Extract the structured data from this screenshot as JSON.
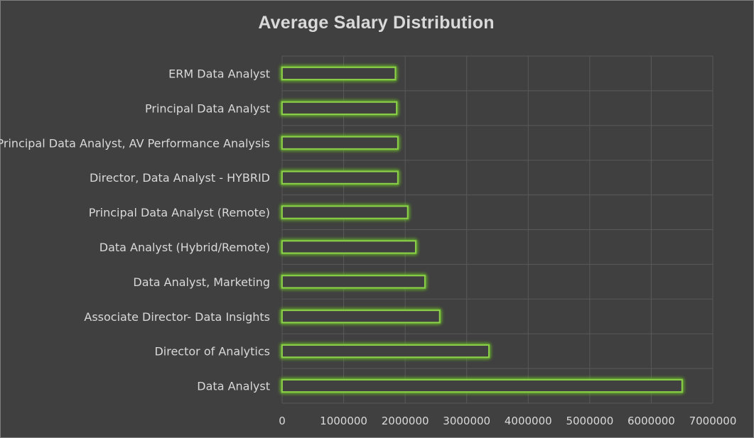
{
  "chart_data": {
    "type": "bar",
    "orientation": "horizontal",
    "title": "Average Salary Distribution",
    "xlabel": "",
    "ylabel": "",
    "xlim": [
      0,
      7000000
    ],
    "x_ticks": [
      "0",
      "1000000",
      "2000000",
      "3000000",
      "4000000",
      "5000000",
      "6000000",
      "7000000"
    ],
    "grid": true,
    "legend": "none",
    "categories": [
      "ERM Data Analyst",
      "Principal Data Analyst",
      "Principal Data Analyst, AV Performance Analysis",
      "Director, Data Analyst - HYBRID",
      "Principal Data Analyst (Remote)",
      "Data Analyst (Hybrid/Remote)",
      "Data Analyst, Marketing",
      "Associate Director- Data Insights",
      "Director of Analytics",
      "Data Analyst"
    ],
    "values": [
      1840000,
      1860000,
      1880000,
      1880000,
      2040000,
      2170000,
      2320000,
      2560000,
      3360000,
      6500000
    ],
    "colors": {
      "background": "#404040",
      "bar_outline": "#8ed14a",
      "bar_glow": "#6fbf2e",
      "bar_fill": "#404040",
      "grid": "#595959",
      "text": "#d9d9d9"
    }
  }
}
